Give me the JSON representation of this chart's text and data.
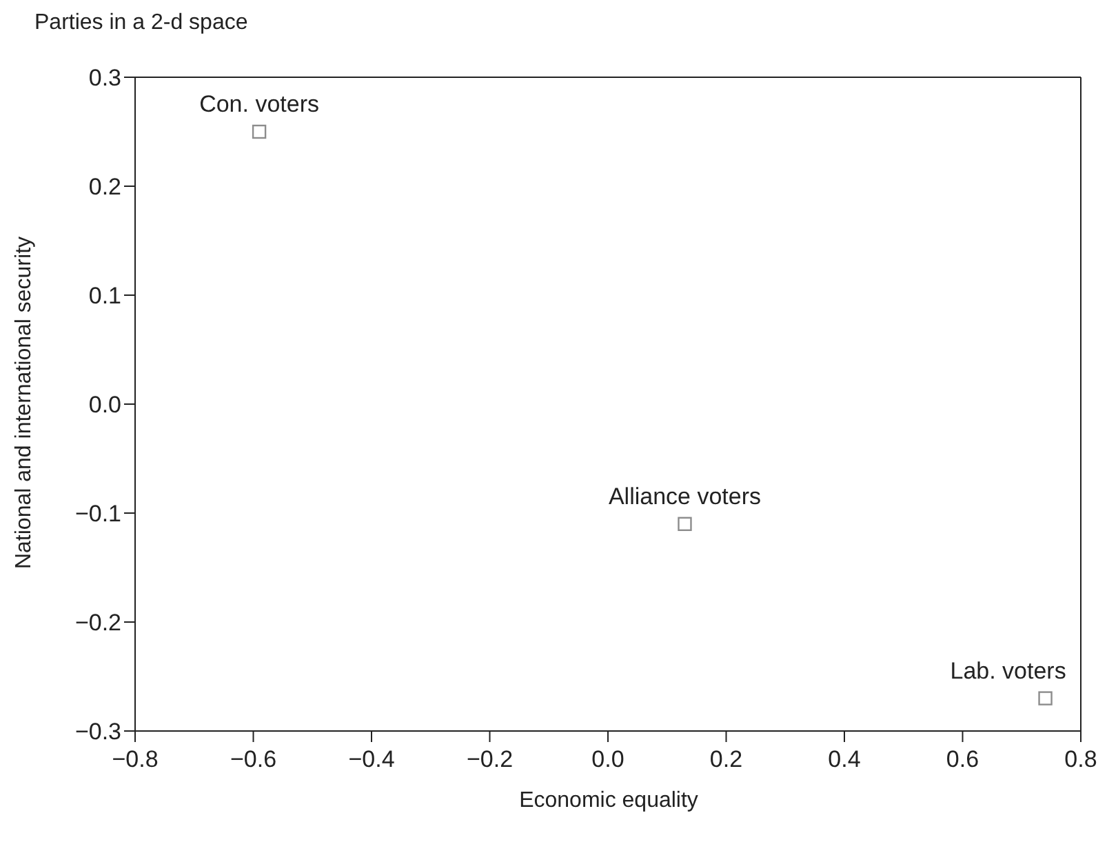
{
  "chart_data": {
    "type": "scatter",
    "title": "Parties in a 2-d space",
    "xlabel": "Economic equality",
    "ylabel": "National and international security",
    "series": [
      {
        "name": "Con. voters",
        "color": "#8c8c8c",
        "x": [
          -0.59
        ],
        "values": [
          0.25
        ]
      },
      {
        "name": "Alliance voters",
        "color": "#8c8c8c",
        "x": [
          0.13
        ],
        "values": [
          -0.11
        ]
      },
      {
        "name": "Lab. voters",
        "color": "#8c8c8c",
        "x": [
          0.74
        ],
        "values": [
          -0.27
        ]
      }
    ],
    "xlim": [
      -0.8,
      0.8
    ],
    "xticks": [
      {
        "value": -0.8,
        "label": "−0.8"
      },
      {
        "value": -0.6,
        "label": "−0.6"
      },
      {
        "value": -0.4,
        "label": "−0.4"
      },
      {
        "value": -0.2,
        "label": "−0.2"
      },
      {
        "value": 0,
        "label": "0.0"
      },
      {
        "value": 0.2,
        "label": "0.2"
      },
      {
        "value": 0.4,
        "label": "0.4"
      },
      {
        "value": 0.6,
        "label": "0.6"
      },
      {
        "value": 0.8,
        "label": "0.8"
      }
    ],
    "ylim": [
      -0.3,
      0.3
    ],
    "yticks": [
      {
        "value": -0.3,
        "label": "−0.3"
      },
      {
        "value": -0.2,
        "label": "−0.2"
      },
      {
        "value": -0.1,
        "label": "−0.1"
      },
      {
        "value": 0,
        "label": "0.0"
      },
      {
        "value": 0.1,
        "label": "0.1"
      },
      {
        "value": 0.2,
        "label": "0.2"
      },
      {
        "value": 0.3,
        "label": "0.3"
      }
    ],
    "legend": false,
    "marker": "square"
  }
}
